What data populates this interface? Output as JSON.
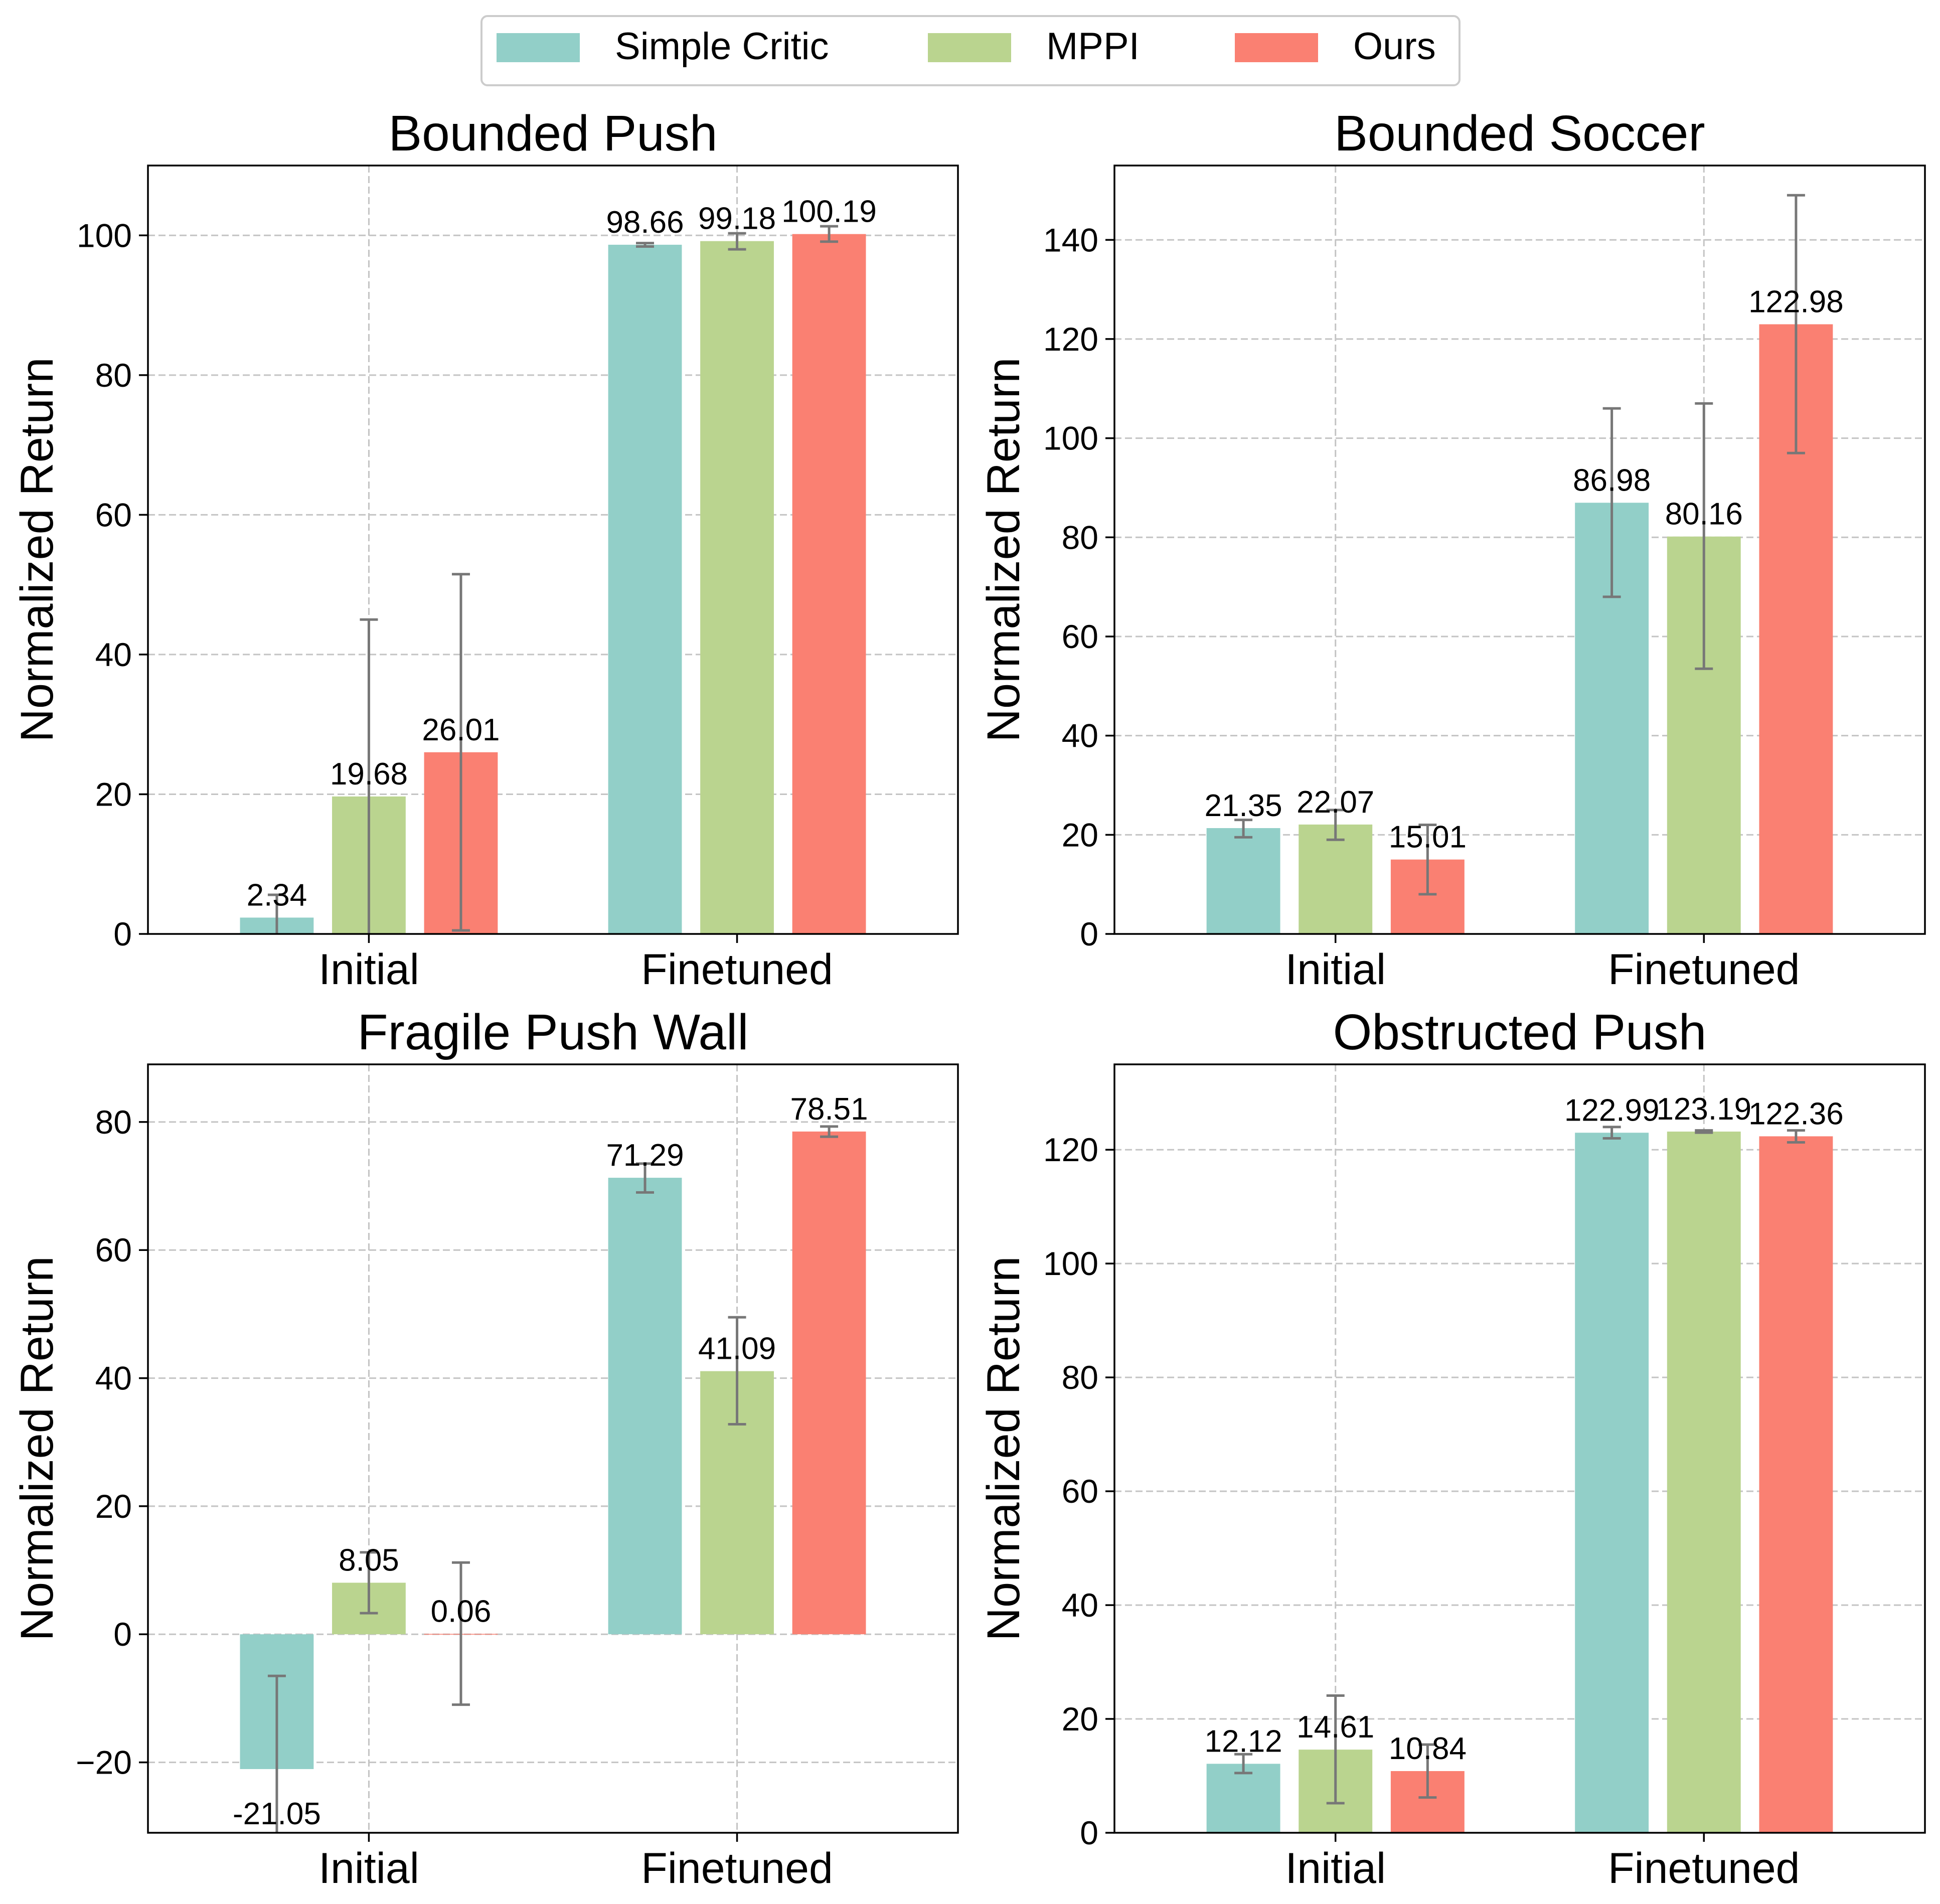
{
  "legend": [
    {
      "label": "Simple Critic",
      "color": "#92cfc8"
    },
    {
      "label": "MPPI",
      "color": "#bad48f"
    },
    {
      "label": "Ours",
      "color": "#fa8072"
    }
  ],
  "colors": {
    "error_bar": "#777777",
    "grid": "#c4c4c4",
    "axis": "#000000"
  },
  "chart_data": [
    {
      "type": "bar",
      "title": "Bounded Push",
      "ylabel": "Normalized Return",
      "xlabel": "",
      "categories": [
        "Initial",
        "Finetuned"
      ],
      "ylim": [
        0,
        110
      ],
      "yticks": [
        0,
        20,
        40,
        60,
        80,
        100
      ],
      "grid": true,
      "series": [
        {
          "name": "Simple Critic",
          "values": [
            2.34,
            98.66
          ],
          "err_low": [
            0,
            98.4
          ],
          "err_high": [
            5.6,
            98.9
          ]
        },
        {
          "name": "MPPI",
          "values": [
            19.68,
            99.18
          ],
          "err_low": [
            0,
            98.0
          ],
          "err_high": [
            45,
            100.3
          ]
        },
        {
          "name": "Ours",
          "values": [
            26.01,
            100.19
          ],
          "err_low": [
            0.5,
            99.1
          ],
          "err_high": [
            51.5,
            101.3
          ]
        }
      ]
    },
    {
      "type": "bar",
      "title": "Bounded Soccer",
      "ylabel": "Normalized Return",
      "xlabel": "",
      "categories": [
        "Initial",
        "Finetuned"
      ],
      "ylim": [
        0,
        155
      ],
      "yticks": [
        0,
        20,
        40,
        60,
        80,
        100,
        120,
        140
      ],
      "grid": true,
      "series": [
        {
          "name": "Simple Critic",
          "values": [
            21.35,
            86.98
          ],
          "err_low": [
            19.5,
            68
          ],
          "err_high": [
            23,
            106
          ]
        },
        {
          "name": "MPPI",
          "values": [
            22.07,
            80.16
          ],
          "err_low": [
            19,
            53.5
          ],
          "err_high": [
            25,
            107
          ]
        },
        {
          "name": "Ours",
          "values": [
            15.01,
            122.98
          ],
          "err_low": [
            8,
            97
          ],
          "err_high": [
            22,
            149
          ]
        }
      ]
    },
    {
      "type": "bar",
      "title": "Fragile Push Wall",
      "ylabel": "Normalized Return",
      "xlabel": "",
      "categories": [
        "Initial",
        "Finetuned"
      ],
      "ylim": [
        -31,
        89
      ],
      "yticks": [
        -20,
        0,
        20,
        40,
        60,
        80
      ],
      "grid": true,
      "series": [
        {
          "name": "Simple Critic",
          "values": [
            -21.05,
            71.29
          ],
          "err_low": [
            -31,
            69
          ],
          "err_high": [
            -6.5,
            73.5
          ]
        },
        {
          "name": "MPPI",
          "values": [
            8.05,
            41.09
          ],
          "err_low": [
            3.3,
            32.8
          ],
          "err_high": [
            12.8,
            49.5
          ]
        },
        {
          "name": "Ours",
          "values": [
            0.06,
            78.51
          ],
          "err_low": [
            -11,
            77.7
          ],
          "err_high": [
            11.2,
            79.3
          ]
        }
      ]
    },
    {
      "type": "bar",
      "title": "Obstructed Push",
      "ylabel": "Normalized Return",
      "xlabel": "",
      "categories": [
        "Initial",
        "Finetuned"
      ],
      "ylim": [
        0,
        135
      ],
      "yticks": [
        0,
        20,
        40,
        60,
        80,
        100,
        120
      ],
      "grid": true,
      "series": [
        {
          "name": "Simple Critic",
          "values": [
            12.12,
            122.99
          ],
          "err_low": [
            10.5,
            122
          ],
          "err_high": [
            13.8,
            124
          ]
        },
        {
          "name": "MPPI",
          "values": [
            14.61,
            123.19
          ],
          "err_low": [
            5.2,
            123
          ],
          "err_high": [
            24.1,
            123.4
          ]
        },
        {
          "name": "Ours",
          "values": [
            10.84,
            122.36
          ],
          "err_low": [
            6.2,
            121.3
          ],
          "err_high": [
            15.5,
            123.4
          ]
        }
      ]
    }
  ]
}
